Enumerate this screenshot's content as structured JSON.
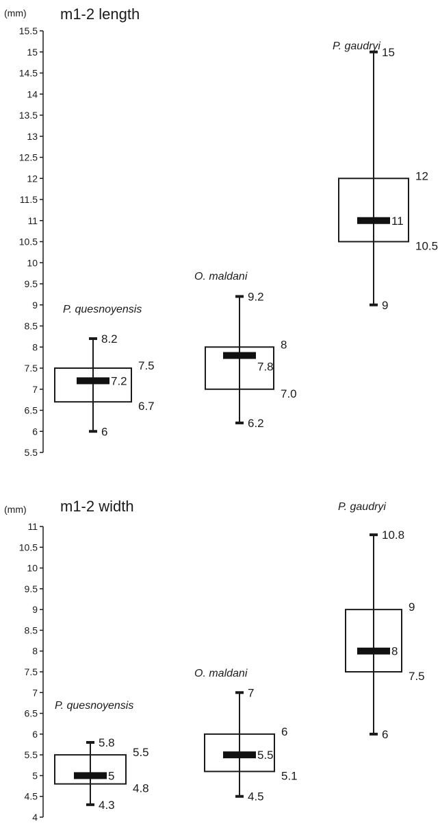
{
  "chart_data": [
    {
      "type": "boxplot",
      "title": "m1-2 length",
      "unit": "(mm)",
      "ylim": [
        5.5,
        15.5
      ],
      "yticks": [
        "5.5",
        "6",
        "6.5",
        "7",
        "7.5",
        "8",
        "8.5",
        "9",
        "9.5",
        "10",
        "10.5",
        "11",
        "11.5",
        "12",
        "12.5",
        "13",
        "13.5",
        "14",
        "14.5",
        "15",
        "15.5"
      ],
      "series": [
        {
          "name": "P. quesnoyensis",
          "min": 6,
          "q1": 6.7,
          "median": 7.2,
          "q3": 7.5,
          "max": 8.2,
          "labels": {
            "min": "6",
            "q1": "6.7",
            "median": "7.2",
            "q3": "7.5",
            "max": "8.2"
          }
        },
        {
          "name": "O. maldani",
          "min": 6.2,
          "q1": 7.0,
          "median": 7.8,
          "q3": 8,
          "max": 9.2,
          "labels": {
            "min": "6.2",
            "q1": "7.0",
            "median": "7.8",
            "q3": "8",
            "max": "9.2"
          }
        },
        {
          "name": "P. gaudryi",
          "min": 9,
          "q1": 10.5,
          "median": 11,
          "q3": 12,
          "max": 15,
          "labels": {
            "min": "9",
            "q1": "10.5",
            "median": "11",
            "q3": "12",
            "max": "15"
          }
        }
      ]
    },
    {
      "type": "boxplot",
      "title": "m1-2 width",
      "unit": "(mm)",
      "ylim": [
        4,
        11
      ],
      "yticks": [
        "4",
        "4.5",
        "5",
        "5.5",
        "6",
        "6.5",
        "7",
        "7.5",
        "8",
        "8.5",
        "9",
        "9.5",
        "10",
        "10.5",
        "11"
      ],
      "series": [
        {
          "name": "P. quesnoyensis",
          "min": 4.3,
          "q1": 4.8,
          "median": 5,
          "q3": 5.5,
          "max": 5.8,
          "labels": {
            "min": "4.3",
            "q1": "4.8",
            "median": "5",
            "q3": "5.5",
            "max": "5.8"
          }
        },
        {
          "name": "O. maldani",
          "min": 4.5,
          "q1": 5.1,
          "median": 5.5,
          "q3": 6,
          "max": 7,
          "labels": {
            "min": "4.5",
            "q1": "5.1",
            "median": "5.5",
            "q3": "6",
            "max": "7"
          }
        },
        {
          "name": "P. gaudryi",
          "min": 6,
          "q1": 7.5,
          "median": 8,
          "q3": 9,
          "max": 10.8,
          "labels": {
            "min": "6",
            "q1": "7.5",
            "median": "8",
            "q3": "9",
            "max": "10.8"
          }
        }
      ]
    }
  ]
}
